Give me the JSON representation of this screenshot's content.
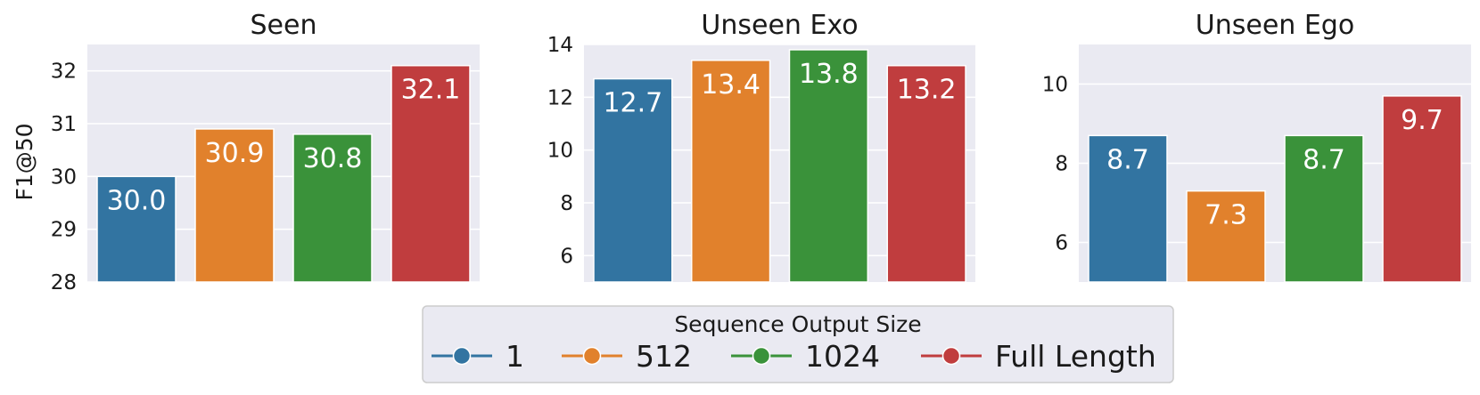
{
  "y_axis_label": "F1@50",
  "legend": {
    "title": "Sequence Output Size",
    "entries": [
      "1",
      "512",
      "1024",
      "Full Length"
    ]
  },
  "colors": [
    "#3274a1",
    "#e1812c",
    "#3a923a",
    "#c03d3e"
  ],
  "chart_data": [
    {
      "type": "bar",
      "title": "Seen",
      "categories": [
        "1",
        "512",
        "1024",
        "Full Length"
      ],
      "values": [
        30.0,
        30.9,
        30.8,
        32.1
      ],
      "value_labels": [
        "30.0",
        "30.9",
        "30.8",
        "32.1"
      ],
      "ylabel": "F1@50",
      "ylim": [
        28,
        32.5
      ],
      "yticks": [
        28,
        29,
        30,
        31,
        32
      ],
      "grid": true
    },
    {
      "type": "bar",
      "title": "Unseen Exo",
      "categories": [
        "1",
        "512",
        "1024",
        "Full Length"
      ],
      "values": [
        12.7,
        13.4,
        13.8,
        13.2
      ],
      "value_labels": [
        "12.7",
        "13.4",
        "13.8",
        "13.2"
      ],
      "ylabel": "",
      "ylim": [
        5,
        14
      ],
      "yticks": [
        6,
        8,
        10,
        12,
        14
      ],
      "grid": true
    },
    {
      "type": "bar",
      "title": "Unseen Ego",
      "categories": [
        "1",
        "512",
        "1024",
        "Full Length"
      ],
      "values": [
        8.7,
        7.3,
        8.7,
        9.7
      ],
      "value_labels": [
        "8.7",
        "7.3",
        "8.7",
        "9.7"
      ],
      "ylabel": "",
      "ylim": [
        5,
        11
      ],
      "yticks": [
        6,
        8,
        10
      ],
      "grid": true
    }
  ]
}
